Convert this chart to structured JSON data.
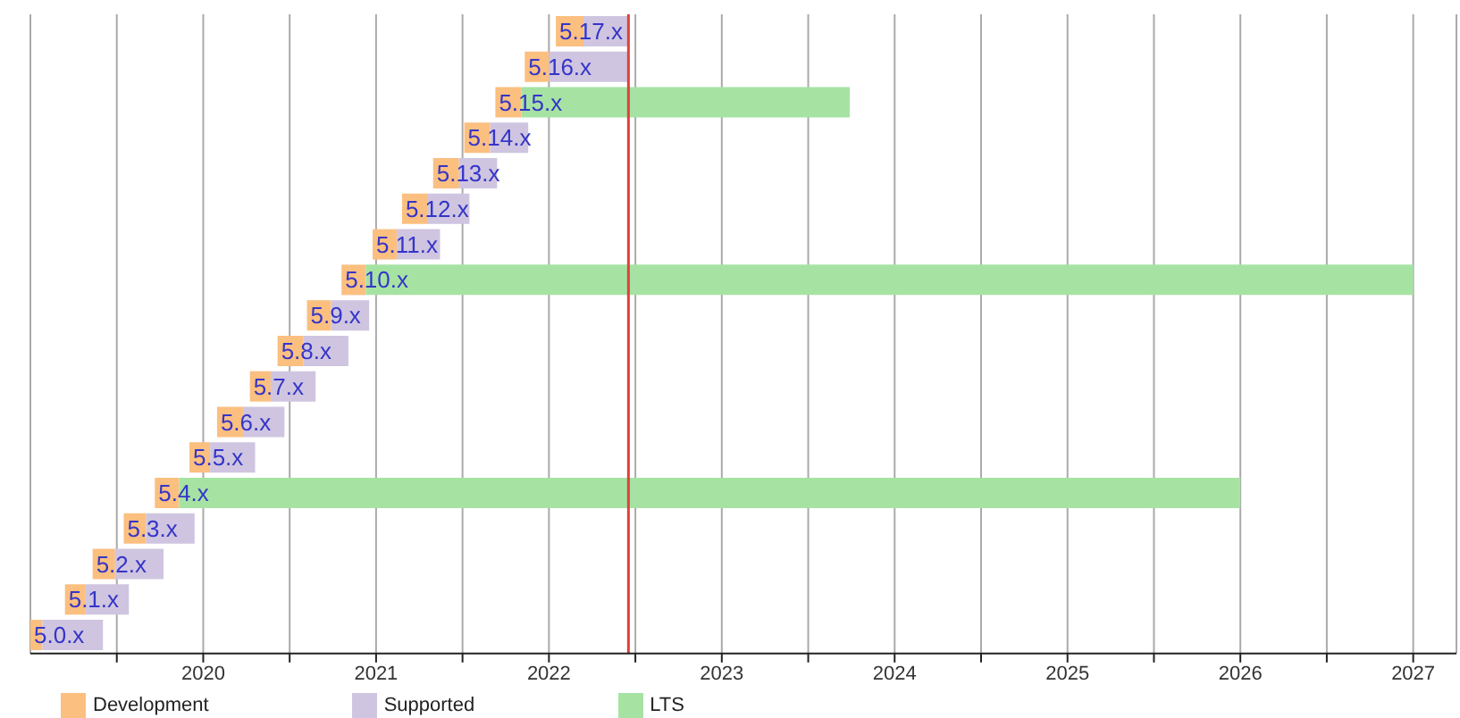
{
  "chart_data": {
    "type": "bar",
    "orientation": "horizontal",
    "categories": [
      "5.17.x",
      "5.16.x",
      "5.15.x",
      "5.14.x",
      "5.13.x",
      "5.12.x",
      "5.11.x",
      "5.10.x",
      "5.9.x",
      "5.8.x",
      "5.7.x",
      "5.6.x",
      "5.5.x",
      "5.4.x",
      "5.3.x",
      "5.2.x",
      "5.1.x",
      "5.0.x"
    ],
    "series": [
      {
        "name": "Development",
        "color": "#fbbf80",
        "base": [
          2022.04,
          2021.86,
          2021.69,
          2021.51,
          2021.33,
          2021.15,
          2020.98,
          2020.8,
          2020.6,
          2020.43,
          2020.27,
          2020.08,
          2019.92,
          2019.72,
          2019.54,
          2019.36,
          2019.2,
          2019.0
        ],
        "values": [
          0.16,
          0.14,
          0.15,
          0.15,
          0.15,
          0.15,
          0.14,
          0.14,
          0.14,
          0.15,
          0.12,
          0.15,
          0.12,
          0.14,
          0.13,
          0.13,
          0.12,
          0.07
        ]
      },
      {
        "name": "Supported",
        "color": "#cfc5e0",
        "base": [
          2022.2,
          2022.0,
          null,
          2021.66,
          2021.48,
          2021.3,
          2021.12,
          null,
          2020.74,
          2020.58,
          2020.39,
          2020.23,
          2020.04,
          null,
          2019.67,
          2019.49,
          2019.32,
          2019.07
        ],
        "values": [
          0.26,
          0.46,
          null,
          0.22,
          0.22,
          0.24,
          0.25,
          null,
          0.22,
          0.26,
          0.26,
          0.24,
          0.26,
          null,
          0.28,
          0.28,
          0.25,
          0.35
        ]
      },
      {
        "name": "LTS",
        "color": "#a6e3a3",
        "base": [
          null,
          null,
          2021.84,
          null,
          null,
          null,
          null,
          2020.94,
          null,
          null,
          null,
          null,
          null,
          2019.86,
          null,
          null,
          null,
          null
        ],
        "values": [
          null,
          null,
          1.9,
          null,
          null,
          null,
          null,
          6.06,
          null,
          null,
          null,
          null,
          null,
          6.14,
          null,
          null,
          null,
          null
        ]
      }
    ],
    "xlim": [
      2019,
      2027.25
    ],
    "xticks": [
      {
        "value": 2019.5,
        "label": null
      },
      2020,
      {
        "value": 2020.5,
        "label": null
      },
      2021,
      {
        "value": 2021.5,
        "label": null
      },
      2022,
      {
        "value": 2022.5,
        "label": null
      },
      2023,
      {
        "value": 2023.5,
        "label": null
      },
      2024,
      {
        "value": 2024.5,
        "label": null
      },
      2025,
      {
        "value": 2025.5,
        "label": null
      },
      2026,
      {
        "value": 2026.5,
        "label": null
      },
      2027
    ],
    "ref_lines": [
      {
        "axis": "x",
        "value": 2022.46,
        "color": "#e0403a"
      }
    ],
    "grid": "x",
    "legend": "bottom left"
  }
}
